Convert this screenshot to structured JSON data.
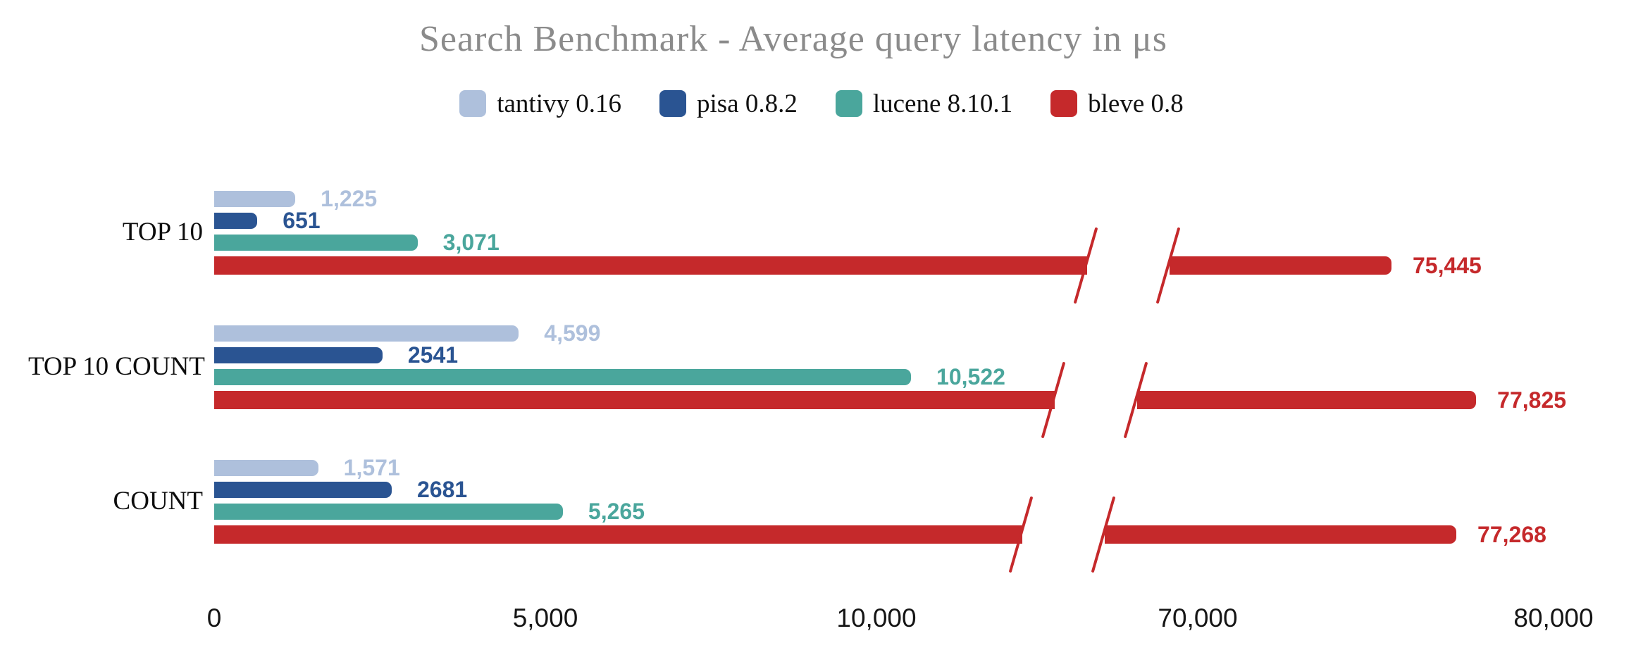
{
  "chart_data": {
    "type": "bar",
    "orientation": "horizontal",
    "title": "Search Benchmark - Average query latency in μs",
    "unit": "μs",
    "categories": [
      "TOP 10",
      "TOP 10 COUNT",
      "COUNT"
    ],
    "series": [
      {
        "name": "tantivy 0.16",
        "color": "#aec0dc",
        "values": [
          1225,
          4599,
          1571
        ],
        "value_labels": [
          "1,225",
          "4,599",
          "1,571"
        ]
      },
      {
        "name": "pisa 0.8.2",
        "color": "#2a5492",
        "values": [
          651,
          2541,
          2681
        ],
        "value_labels": [
          "651",
          "2541",
          "2681"
        ]
      },
      {
        "name": "lucene 8.10.1",
        "color": "#4aa69c",
        "values": [
          3071,
          10522,
          5265
        ],
        "value_labels": [
          "3,071",
          "10,522",
          "5,265"
        ]
      },
      {
        "name": "bleve 0.8",
        "color": "#c5292b",
        "values": [
          75445,
          77825,
          77268
        ],
        "value_labels": [
          "75,445",
          "77,825",
          "77,268"
        ]
      }
    ],
    "x_axis": {
      "tick_values": [
        0,
        5000,
        10000,
        70000,
        80000
      ],
      "tick_labels": [
        "0",
        "5,000",
        "10,000",
        "70,000",
        "80,000"
      ],
      "axis_break": {
        "after_value": 12000,
        "resume_value": 66000
      },
      "grid": false
    },
    "legend_position": "top",
    "title_color": "#8b8b8b",
    "background_color": "#ffffff"
  }
}
